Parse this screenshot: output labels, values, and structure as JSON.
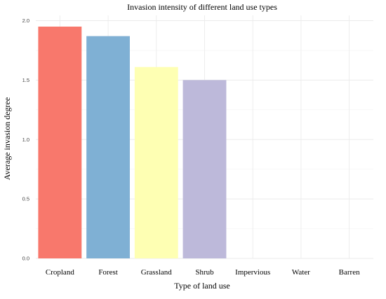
{
  "chart_data": {
    "type": "bar",
    "title": "Invasion intensity of different land use types",
    "xlabel": "Type of land use",
    "ylabel": "Average invasion degree",
    "categories": [
      "Cropland",
      "Forest",
      "Grassland",
      "Shrub",
      "Impervious",
      "Water",
      "Barren"
    ],
    "values": [
      1.95,
      1.87,
      1.61,
      1.5,
      0,
      0,
      0
    ],
    "colors": [
      "#f8786c",
      "#7fb0d4",
      "#feffb3",
      "#bdb9da",
      "#cccccc",
      "#cccccc",
      "#cccccc"
    ],
    "ylim": [
      0,
      2.0
    ],
    "yticks": [
      "0.0",
      "0.5",
      "1.0",
      "1.5",
      "2.0"
    ],
    "grid": true,
    "legend": "none"
  }
}
